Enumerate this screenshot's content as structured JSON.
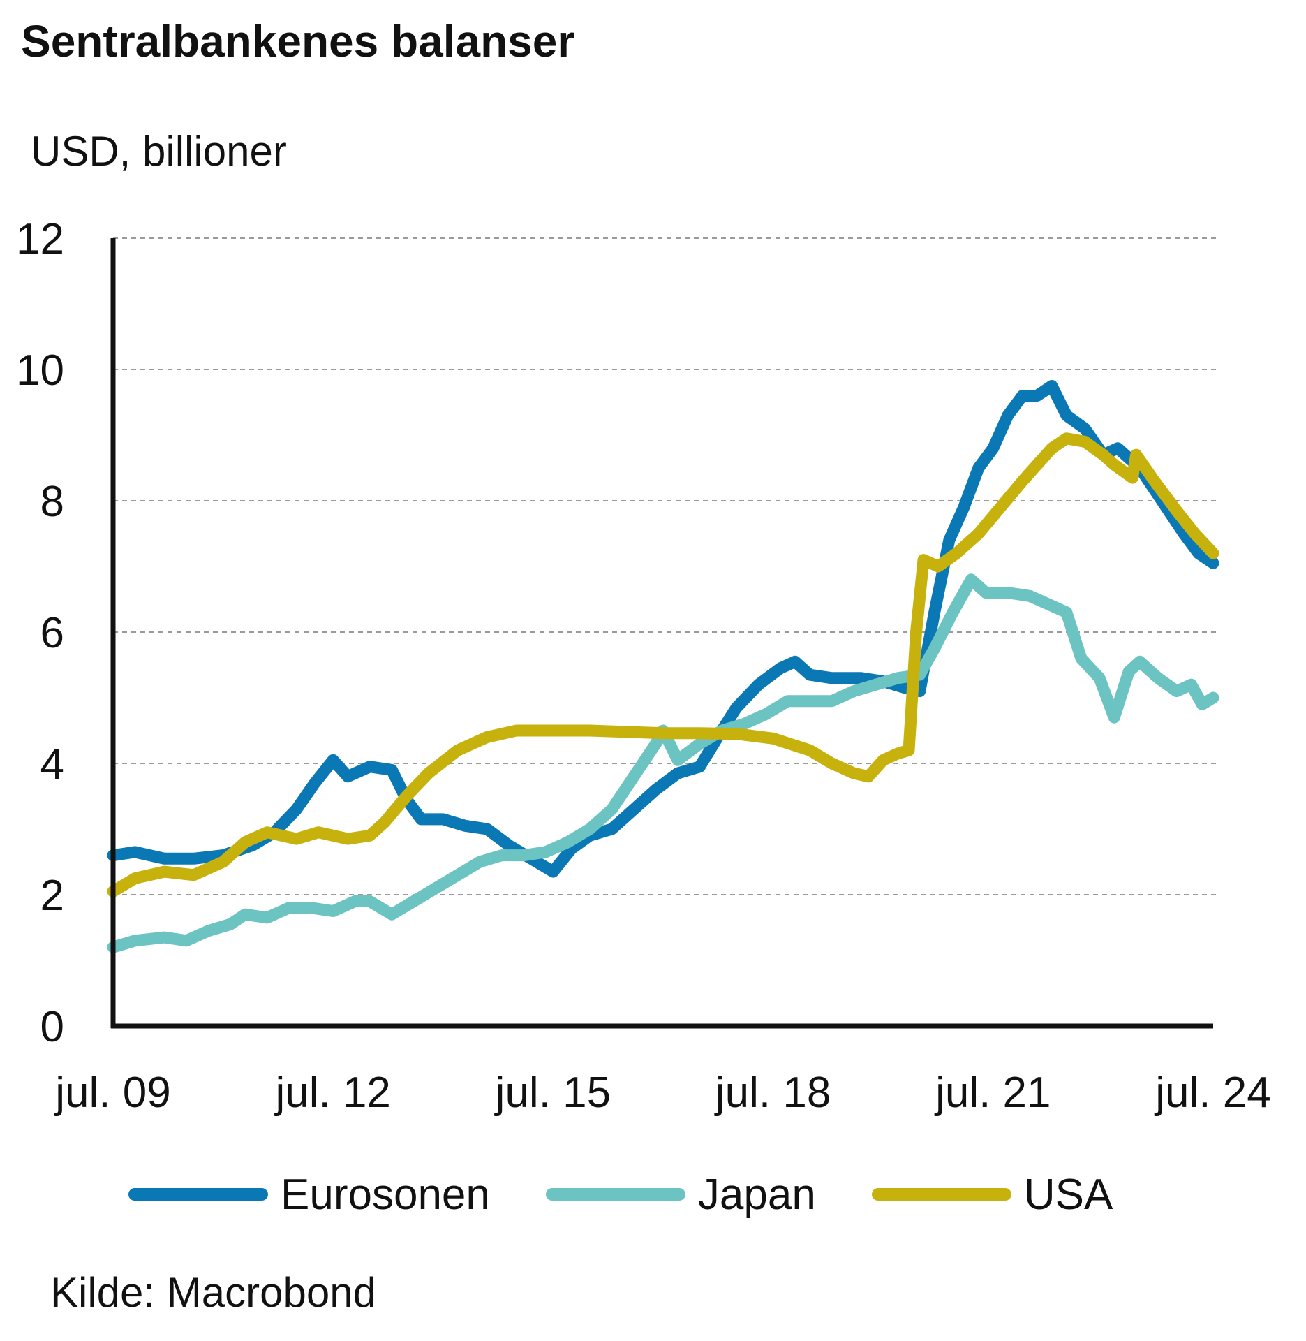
{
  "chart_data": {
    "type": "line",
    "title": "Sentralbankenes balanser",
    "ylabel": "USD, billioner",
    "xlabel": "",
    "ylim": [
      0,
      12
    ],
    "yticks": [
      "0",
      "2",
      "4",
      "6",
      "8",
      "10",
      "12"
    ],
    "xlim": [
      2009.5,
      2024.5
    ],
    "xticks": [
      {
        "x": 2009.5,
        "label": "jul. 09"
      },
      {
        "x": 2012.5,
        "label": "jul. 12"
      },
      {
        "x": 2015.5,
        "label": "jul. 15"
      },
      {
        "x": 2018.5,
        "label": "jul. 18"
      },
      {
        "x": 2021.5,
        "label": "jul. 21"
      },
      {
        "x": 2024.5,
        "label": "jul. 24"
      }
    ],
    "grid": true,
    "legend_position": "bottom",
    "series": [
      {
        "name": "Eurosonen",
        "color": "#0a78b4",
        "points": [
          [
            2009.5,
            2.6
          ],
          [
            2009.8,
            2.65
          ],
          [
            2010.2,
            2.55
          ],
          [
            2010.6,
            2.55
          ],
          [
            2011.0,
            2.6
          ],
          [
            2011.4,
            2.75
          ],
          [
            2011.7,
            2.95
          ],
          [
            2012.0,
            3.3
          ],
          [
            2012.25,
            3.7
          ],
          [
            2012.5,
            4.05
          ],
          [
            2012.7,
            3.8
          ],
          [
            2013.0,
            3.95
          ],
          [
            2013.3,
            3.9
          ],
          [
            2013.5,
            3.45
          ],
          [
            2013.7,
            3.15
          ],
          [
            2014.0,
            3.15
          ],
          [
            2014.3,
            3.05
          ],
          [
            2014.6,
            3.0
          ],
          [
            2014.9,
            2.75
          ],
          [
            2015.2,
            2.55
          ],
          [
            2015.5,
            2.35
          ],
          [
            2015.75,
            2.7
          ],
          [
            2016.0,
            2.9
          ],
          [
            2016.3,
            3.0
          ],
          [
            2016.6,
            3.3
          ],
          [
            2016.9,
            3.6
          ],
          [
            2017.2,
            3.85
          ],
          [
            2017.5,
            3.95
          ],
          [
            2017.8,
            4.5
          ],
          [
            2018.0,
            4.85
          ],
          [
            2018.3,
            5.2
          ],
          [
            2018.6,
            5.45
          ],
          [
            2018.8,
            5.55
          ],
          [
            2019.0,
            5.35
          ],
          [
            2019.3,
            5.3
          ],
          [
            2019.7,
            5.3
          ],
          [
            2020.0,
            5.25
          ],
          [
            2020.3,
            5.15
          ],
          [
            2020.5,
            5.1
          ],
          [
            2020.7,
            6.3
          ],
          [
            2020.9,
            7.4
          ],
          [
            2021.1,
            7.9
          ],
          [
            2021.3,
            8.5
          ],
          [
            2021.5,
            8.8
          ],
          [
            2021.7,
            9.3
          ],
          [
            2021.9,
            9.6
          ],
          [
            2022.1,
            9.6
          ],
          [
            2022.3,
            9.75
          ],
          [
            2022.5,
            9.3
          ],
          [
            2022.75,
            9.1
          ],
          [
            2023.0,
            8.7
          ],
          [
            2023.2,
            8.8
          ],
          [
            2023.5,
            8.5
          ],
          [
            2023.8,
            8.0
          ],
          [
            2024.1,
            7.5
          ],
          [
            2024.3,
            7.2
          ],
          [
            2024.5,
            7.05
          ]
        ]
      },
      {
        "name": "Japan",
        "color": "#6cc4c2",
        "points": [
          [
            2009.5,
            1.2
          ],
          [
            2009.8,
            1.3
          ],
          [
            2010.2,
            1.35
          ],
          [
            2010.5,
            1.3
          ],
          [
            2010.8,
            1.45
          ],
          [
            2011.1,
            1.55
          ],
          [
            2011.3,
            1.7
          ],
          [
            2011.6,
            1.65
          ],
          [
            2011.9,
            1.8
          ],
          [
            2012.2,
            1.8
          ],
          [
            2012.5,
            1.75
          ],
          [
            2012.8,
            1.9
          ],
          [
            2013.0,
            1.9
          ],
          [
            2013.3,
            1.7
          ],
          [
            2013.6,
            1.9
          ],
          [
            2013.9,
            2.1
          ],
          [
            2014.2,
            2.3
          ],
          [
            2014.5,
            2.5
          ],
          [
            2014.8,
            2.6
          ],
          [
            2015.1,
            2.6
          ],
          [
            2015.4,
            2.65
          ],
          [
            2015.7,
            2.8
          ],
          [
            2016.0,
            3.0
          ],
          [
            2016.3,
            3.3
          ],
          [
            2016.6,
            3.8
          ],
          [
            2016.9,
            4.3
          ],
          [
            2017.0,
            4.5
          ],
          [
            2017.2,
            4.05
          ],
          [
            2017.5,
            4.3
          ],
          [
            2017.8,
            4.5
          ],
          [
            2018.1,
            4.6
          ],
          [
            2018.4,
            4.75
          ],
          [
            2018.7,
            4.95
          ],
          [
            2019.0,
            4.95
          ],
          [
            2019.3,
            4.95
          ],
          [
            2019.6,
            5.1
          ],
          [
            2019.9,
            5.2
          ],
          [
            2020.2,
            5.3
          ],
          [
            2020.5,
            5.35
          ],
          [
            2020.7,
            5.75
          ],
          [
            2020.95,
            6.3
          ],
          [
            2021.2,
            6.8
          ],
          [
            2021.4,
            6.6
          ],
          [
            2021.7,
            6.6
          ],
          [
            2022.0,
            6.55
          ],
          [
            2022.3,
            6.4
          ],
          [
            2022.5,
            6.3
          ],
          [
            2022.7,
            5.6
          ],
          [
            2022.95,
            5.3
          ],
          [
            2023.15,
            4.7
          ],
          [
            2023.35,
            5.4
          ],
          [
            2023.5,
            5.55
          ],
          [
            2023.75,
            5.3
          ],
          [
            2024.0,
            5.1
          ],
          [
            2024.2,
            5.2
          ],
          [
            2024.35,
            4.9
          ],
          [
            2024.5,
            5.0
          ]
        ]
      },
      {
        "name": "USA",
        "color": "#c7b20d",
        "points": [
          [
            2009.5,
            2.05
          ],
          [
            2009.8,
            2.25
          ],
          [
            2010.2,
            2.35
          ],
          [
            2010.6,
            2.3
          ],
          [
            2011.0,
            2.5
          ],
          [
            2011.3,
            2.8
          ],
          [
            2011.6,
            2.95
          ],
          [
            2012.0,
            2.85
          ],
          [
            2012.3,
            2.95
          ],
          [
            2012.7,
            2.85
          ],
          [
            2013.0,
            2.9
          ],
          [
            2013.2,
            3.1
          ],
          [
            2013.5,
            3.5
          ],
          [
            2013.8,
            3.85
          ],
          [
            2014.2,
            4.2
          ],
          [
            2014.6,
            4.4
          ],
          [
            2015.0,
            4.5
          ],
          [
            2015.5,
            4.5
          ],
          [
            2016.0,
            4.5
          ],
          [
            2016.5,
            4.48
          ],
          [
            2017.0,
            4.46
          ],
          [
            2017.5,
            4.46
          ],
          [
            2018.0,
            4.45
          ],
          [
            2018.5,
            4.38
          ],
          [
            2019.0,
            4.2
          ],
          [
            2019.3,
            4.0
          ],
          [
            2019.6,
            3.85
          ],
          [
            2019.8,
            3.8
          ],
          [
            2020.0,
            4.05
          ],
          [
            2020.2,
            4.15
          ],
          [
            2020.35,
            4.2
          ],
          [
            2020.45,
            6.0
          ],
          [
            2020.55,
            7.1
          ],
          [
            2020.75,
            7.0
          ],
          [
            2021.0,
            7.2
          ],
          [
            2021.3,
            7.5
          ],
          [
            2021.6,
            7.9
          ],
          [
            2021.9,
            8.3
          ],
          [
            2022.1,
            8.55
          ],
          [
            2022.3,
            8.8
          ],
          [
            2022.5,
            8.95
          ],
          [
            2022.75,
            8.9
          ],
          [
            2023.0,
            8.7
          ],
          [
            2023.15,
            8.55
          ],
          [
            2023.4,
            8.35
          ],
          [
            2023.45,
            8.7
          ],
          [
            2023.7,
            8.3
          ],
          [
            2024.0,
            7.85
          ],
          [
            2024.25,
            7.5
          ],
          [
            2024.5,
            7.2
          ]
        ]
      }
    ],
    "source": "Kilde: Macrobond"
  }
}
